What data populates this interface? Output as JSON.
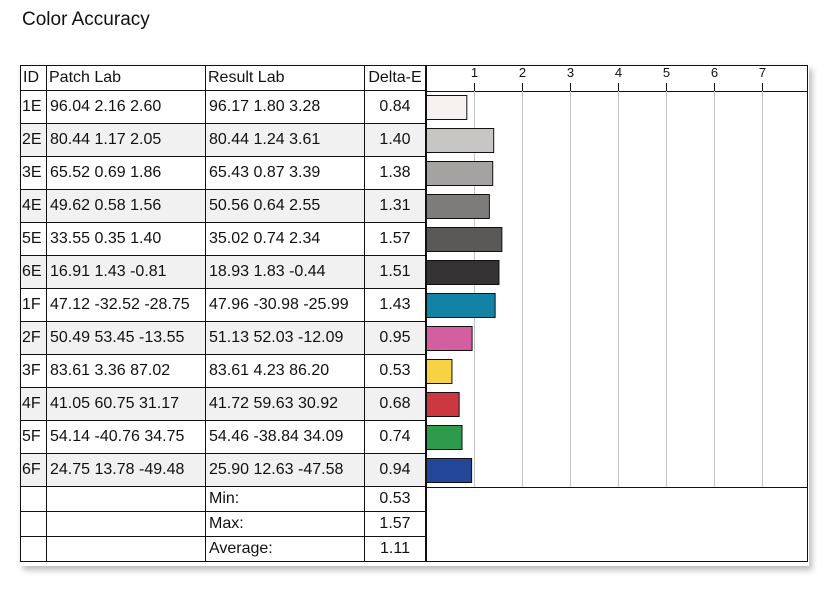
{
  "title": "Color Accuracy",
  "columns": {
    "id": "ID",
    "patch": "Patch Lab",
    "result": "Result Lab",
    "delta": "Delta-E"
  },
  "summary": [
    {
      "label": "Min:",
      "value": "0.53"
    },
    {
      "label": "Max:",
      "value": "1.57"
    },
    {
      "label": "Average:",
      "value": "1.11"
    }
  ],
  "chart_data": {
    "type": "bar",
    "orientation": "horizontal",
    "title": "",
    "xlabel": "",
    "ylabel": "",
    "xlim": [
      0,
      8
    ],
    "ticks": [
      1,
      2,
      3,
      4,
      5,
      6,
      7
    ],
    "grid": true,
    "categories": [
      "1E",
      "2E",
      "3E",
      "4E",
      "5E",
      "6E",
      "1F",
      "2F",
      "3F",
      "4F",
      "5F",
      "6F"
    ],
    "values": [
      0.84,
      1.4,
      1.38,
      1.31,
      1.57,
      1.51,
      1.43,
      0.95,
      0.53,
      0.68,
      0.74,
      0.94
    ],
    "colors": [
      "#f6f2ef",
      "#c8c6c3",
      "#a5a3a0",
      "#7e7c7a",
      "#5a5958",
      "#343233",
      "#1283a4",
      "#d45fa0",
      "#f8d245",
      "#cc3840",
      "#2e9a4c",
      "#234696"
    ],
    "rows": [
      {
        "id": "1E",
        "patch": [
          "96.04",
          "2.16",
          "2.60"
        ],
        "result": [
          "96.17",
          "1.80",
          "3.28"
        ],
        "delta": "0.84"
      },
      {
        "id": "2E",
        "patch": [
          "80.44",
          "1.17",
          "2.05"
        ],
        "result": [
          "80.44",
          "1.24",
          "3.61"
        ],
        "delta": "1.40"
      },
      {
        "id": "3E",
        "patch": [
          "65.52",
          "0.69",
          "1.86"
        ],
        "result": [
          "65.43",
          "0.87",
          "3.39"
        ],
        "delta": "1.38"
      },
      {
        "id": "4E",
        "patch": [
          "49.62",
          "0.58",
          "1.56"
        ],
        "result": [
          "50.56",
          "0.64",
          "2.55"
        ],
        "delta": "1.31"
      },
      {
        "id": "5E",
        "patch": [
          "33.55",
          "0.35",
          "1.40"
        ],
        "result": [
          "35.02",
          "0.74",
          "2.34"
        ],
        "delta": "1.57"
      },
      {
        "id": "6E",
        "patch": [
          "16.91",
          "1.43",
          "-0.81"
        ],
        "result": [
          "18.93",
          "1.83",
          "-0.44"
        ],
        "delta": "1.51"
      },
      {
        "id": "1F",
        "patch": [
          "47.12",
          "-32.52",
          "-28.75"
        ],
        "result": [
          "47.96",
          "-30.98",
          "-25.99"
        ],
        "delta": "1.43"
      },
      {
        "id": "2F",
        "patch": [
          "50.49",
          "53.45",
          "-13.55"
        ],
        "result": [
          "51.13",
          "52.03",
          "-12.09"
        ],
        "delta": "0.95"
      },
      {
        "id": "3F",
        "patch": [
          "83.61",
          "3.36",
          "87.02"
        ],
        "result": [
          "83.61",
          "4.23",
          "86.20"
        ],
        "delta": "0.53"
      },
      {
        "id": "4F",
        "patch": [
          "41.05",
          "60.75",
          "31.17"
        ],
        "result": [
          "41.72",
          "59.63",
          "30.92"
        ],
        "delta": "0.68"
      },
      {
        "id": "5F",
        "patch": [
          "54.14",
          "-40.76",
          "34.75"
        ],
        "result": [
          "54.46",
          "-38.84",
          "34.09"
        ],
        "delta": "0.74"
      },
      {
        "id": "6F",
        "patch": [
          "24.75",
          "13.78",
          "-49.48"
        ],
        "result": [
          "25.90",
          "12.63",
          "-47.58"
        ],
        "delta": "0.94"
      }
    ]
  }
}
